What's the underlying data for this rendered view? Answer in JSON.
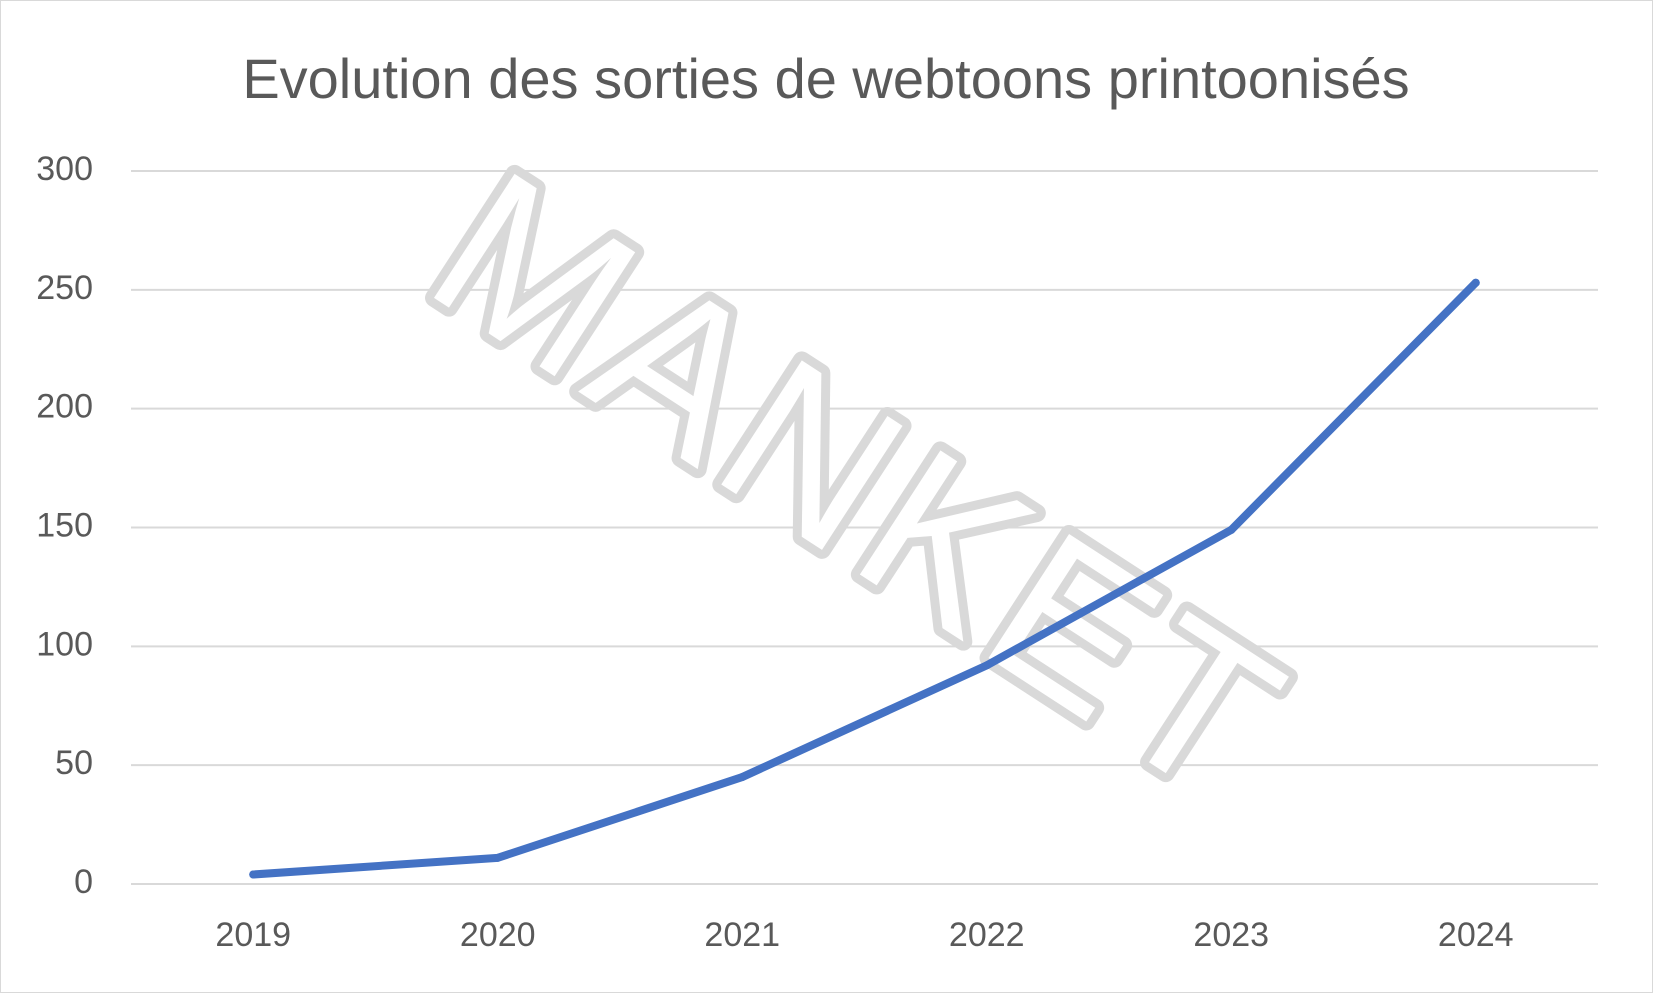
{
  "chart_data": {
    "type": "line",
    "title": "Evolution des sorties de webtoons printoonisés",
    "xlabel": "",
    "ylabel": "",
    "categories": [
      "2019",
      "2020",
      "2021",
      "2022",
      "2023",
      "2024"
    ],
    "series": [
      {
        "values": [
          4,
          11,
          45,
          92,
          149,
          253
        ],
        "color": "#4472c4"
      }
    ],
    "ylim": [
      0,
      300
    ],
    "yticks": [
      0,
      50,
      100,
      150,
      200,
      250,
      300
    ],
    "grid": true,
    "legend": "none",
    "gridline_color": "#d9d9d9",
    "text_color": "#595959",
    "watermark": "MANKET"
  }
}
